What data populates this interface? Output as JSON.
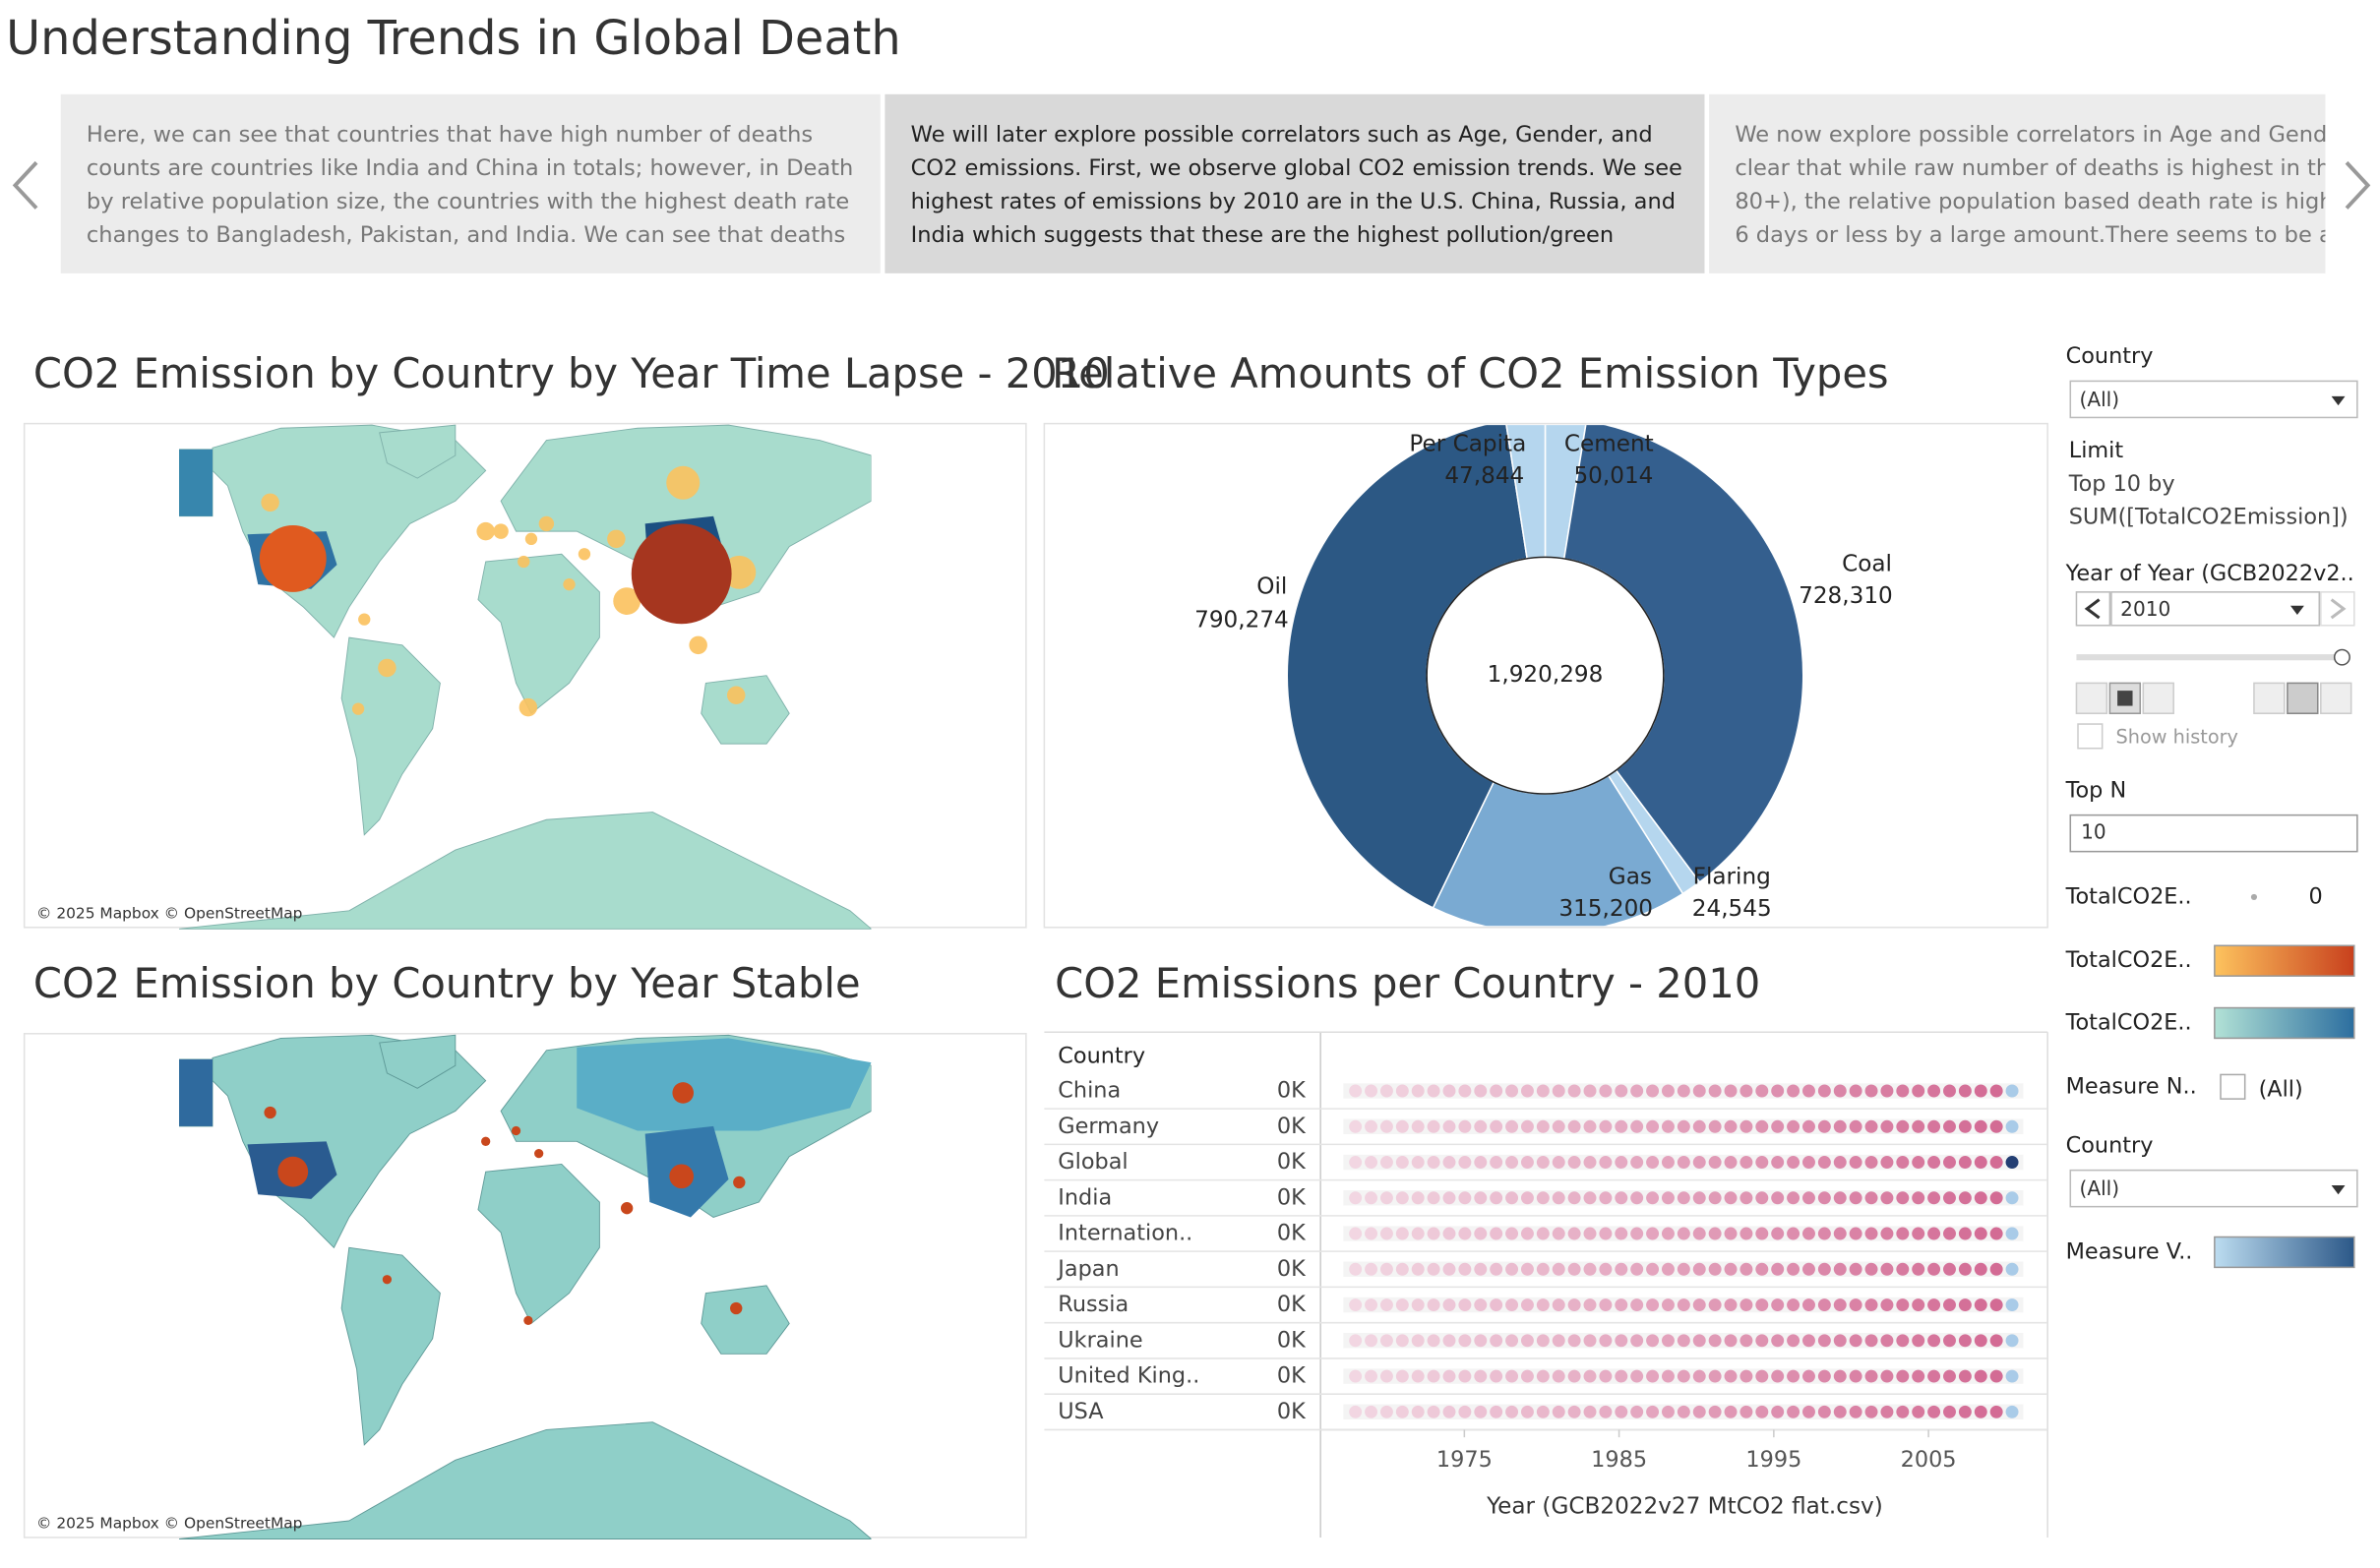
{
  "title": "Understanding Trends in Global Death",
  "story_points": [
    {
      "lines": [
        "Here, we can see that countries that have high number of deaths",
        "counts are countries like India and China in totals; however, in Death",
        "by relative population size, the countries with the highest death rate",
        "changes to Bangladesh, Pakistan, and India. We can see that deaths"
      ]
    },
    {
      "lines": [
        "We will later explore possible correlators such as Age, Gender, and",
        "CO2 emissions. First, we observe global CO2 emission trends. We see",
        "highest rates of emissions by 2010 are in the U.S. China, Russia, and",
        "India which suggests that these are the highest pollution/green"
      ]
    },
    {
      "lines": [
        "We now explore possible correlators in Age and Gende",
        "clear that while raw number of deaths is highest in th",
        "80+), the relative population based death rate is high",
        "6 days or less by a large amount.There seems to be a c"
      ]
    }
  ],
  "maps": {
    "timelapse_title": "CO2 Emission by Country by Year Time Lapse - 2010",
    "stable_title": "CO2 Emission by Country by Year Stable",
    "attribution": "© 2025 Mapbox © OpenStreetMap"
  },
  "chart_data": [
    {
      "type": "pie",
      "title": "Relative Amounts of CO2 Emission Types",
      "categories": [
        "Cement",
        "Coal",
        "Flaring",
        "Gas",
        "Oil",
        "Per Capita"
      ],
      "values": [
        50014,
        728310,
        24545,
        315200,
        790274,
        47844
      ],
      "value_labels": [
        "50,014",
        "728,310",
        "24,545",
        "315,200",
        "790,274",
        "47,844"
      ],
      "colors": [
        "#b5d6ee",
        "#345f8e",
        "#b5d6ee",
        "#7aaad2",
        "#2c5884",
        "#b5d6ee"
      ],
      "center_text": "1,920,298"
    },
    {
      "type": "dot",
      "title": "CO2 Emissions per Country - 2010",
      "row_header": "Country",
      "categories": [
        "China",
        "Germany",
        "Global",
        "India",
        "Internation..",
        "Japan",
        "Russia",
        "Ukraine",
        "United King..",
        "USA"
      ],
      "row_labels": [
        "0K",
        "0K",
        "0K",
        "0K",
        "0K",
        "0K",
        "0K",
        "0K",
        "0K",
        "0K"
      ],
      "xlim": [
        1965.9,
        2012.6
      ],
      "xticks": [
        1975,
        1985,
        1995,
        2005
      ],
      "x_title": "Year (GCB2022v27 MtCO2 flat.csv)"
    }
  ],
  "filters": {
    "country_1": {
      "label": "Country",
      "value": "(All)"
    },
    "limit": {
      "label": "Limit",
      "lines": [
        "Top 10 by",
        "SUM([TotalCO2Emission])"
      ]
    },
    "year": {
      "label": "Year of Year (GCB2022v2..",
      "value": 2010,
      "history": "Show history"
    },
    "top_n": {
      "label": "Top N",
      "value": 10
    },
    "legend_size": {
      "label": "TotalCO2E..",
      "value": 0
    },
    "legend_orange": {
      "label": "TotalCO2E.."
    },
    "legend_teal": {
      "label": "TotalCO2E.."
    },
    "measure_names": {
      "label": "Measure N..",
      "value": "(All)"
    },
    "country_2": {
      "label": "Country",
      "value": "(All)"
    },
    "measure_values": {
      "label": "Measure V.."
    }
  }
}
